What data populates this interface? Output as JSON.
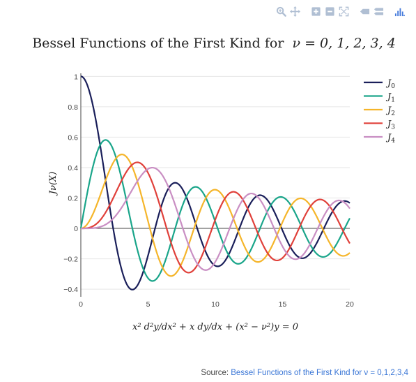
{
  "toolbar": {
    "buttons": [
      {
        "icon": "zoom-icon"
      },
      {
        "icon": "pan-icon"
      },
      {
        "icon": "zoom-in-icon"
      },
      {
        "icon": "zoom-out-icon"
      },
      {
        "icon": "autoscale-icon"
      },
      {
        "icon": "hover-closest-icon"
      },
      {
        "icon": "hover-compare-icon"
      },
      {
        "icon": "plotly-logo-icon"
      }
    ],
    "color": "#b0bfd3",
    "logo_color": "#447adb"
  },
  "chart_data": {
    "type": "line",
    "title_text": "Bessel Functions of the First Kind for",
    "title_math": "ν = 0, 1, 2, 3, 4",
    "xlabel_math": "x² d²y/dx² + x dy/dx + (x² − ν²)y = 0",
    "ylabel_math": "Jν(X)",
    "xlim": [
      0,
      20
    ],
    "ylim": [
      -0.45,
      1.02
    ],
    "x_ticks": [
      0,
      5,
      10,
      15,
      20
    ],
    "y_ticks": [
      -0.4,
      -0.2,
      0,
      0.2,
      0.4,
      0.6,
      0.8,
      1
    ],
    "x_tick_labels": [
      "0",
      "5",
      "10",
      "15",
      "20"
    ],
    "y_tick_labels": [
      "−0.4",
      "−0.2",
      "0",
      "0.2",
      "0.4",
      "0.6",
      "0.8",
      "1"
    ],
    "grid": true,
    "legend_position": "top-right",
    "series": [
      {
        "name": "J",
        "subscript": "0",
        "order": 0,
        "color": "#1a1f5a"
      },
      {
        "name": "J",
        "subscript": "1",
        "order": 1,
        "color": "#1aa58a"
      },
      {
        "name": "J",
        "subscript": "2",
        "order": 2,
        "color": "#f5b52a"
      },
      {
        "name": "J",
        "subscript": "3",
        "order": 3,
        "color": "#e0403a"
      },
      {
        "name": "J",
        "subscript": "4",
        "order": 4,
        "color": "#c98ec3"
      }
    ]
  },
  "source": {
    "label": "Source:",
    "link_text": "Bessel Functions of the First Kind for ν = 0,1,2,3,4"
  }
}
